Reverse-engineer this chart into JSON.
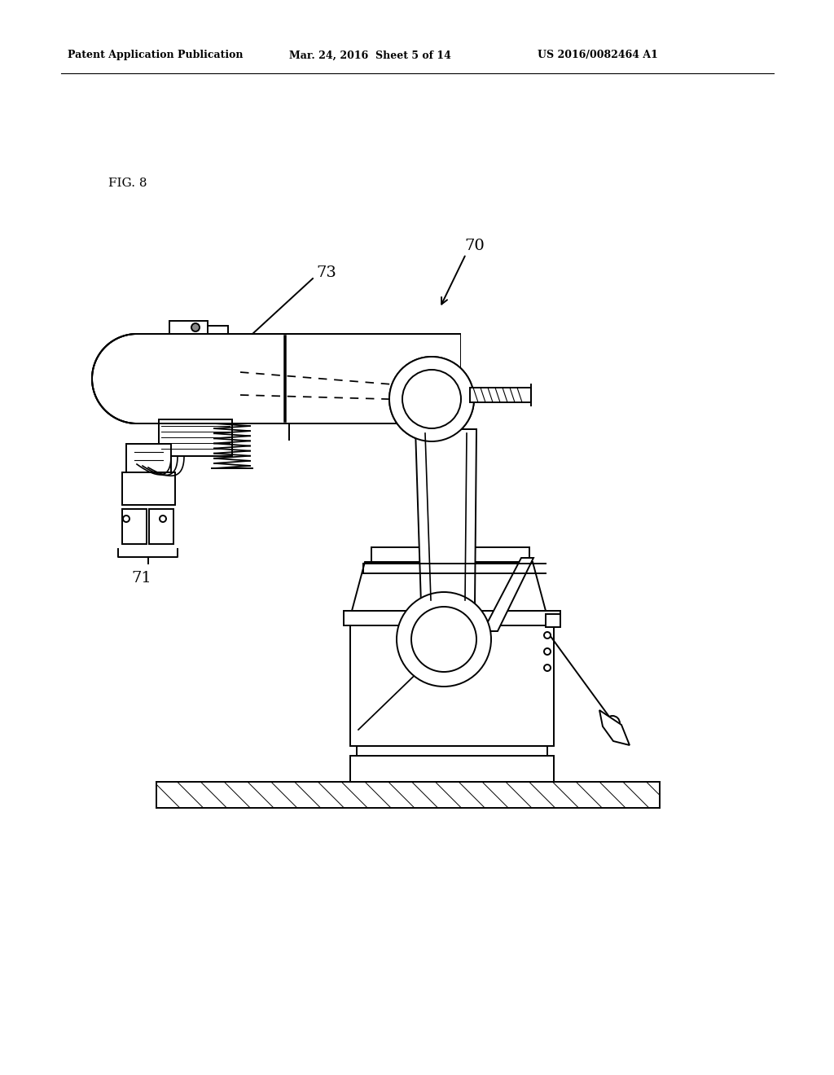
{
  "bg_color": "#ffffff",
  "line_color": "#000000",
  "header_left": "Patent Application Publication",
  "header_mid": "Mar. 24, 2016  Sheet 5 of 14",
  "header_right": "US 2016/0082464 A1",
  "fig_label": "FIG. 8",
  "lw": 1.4
}
